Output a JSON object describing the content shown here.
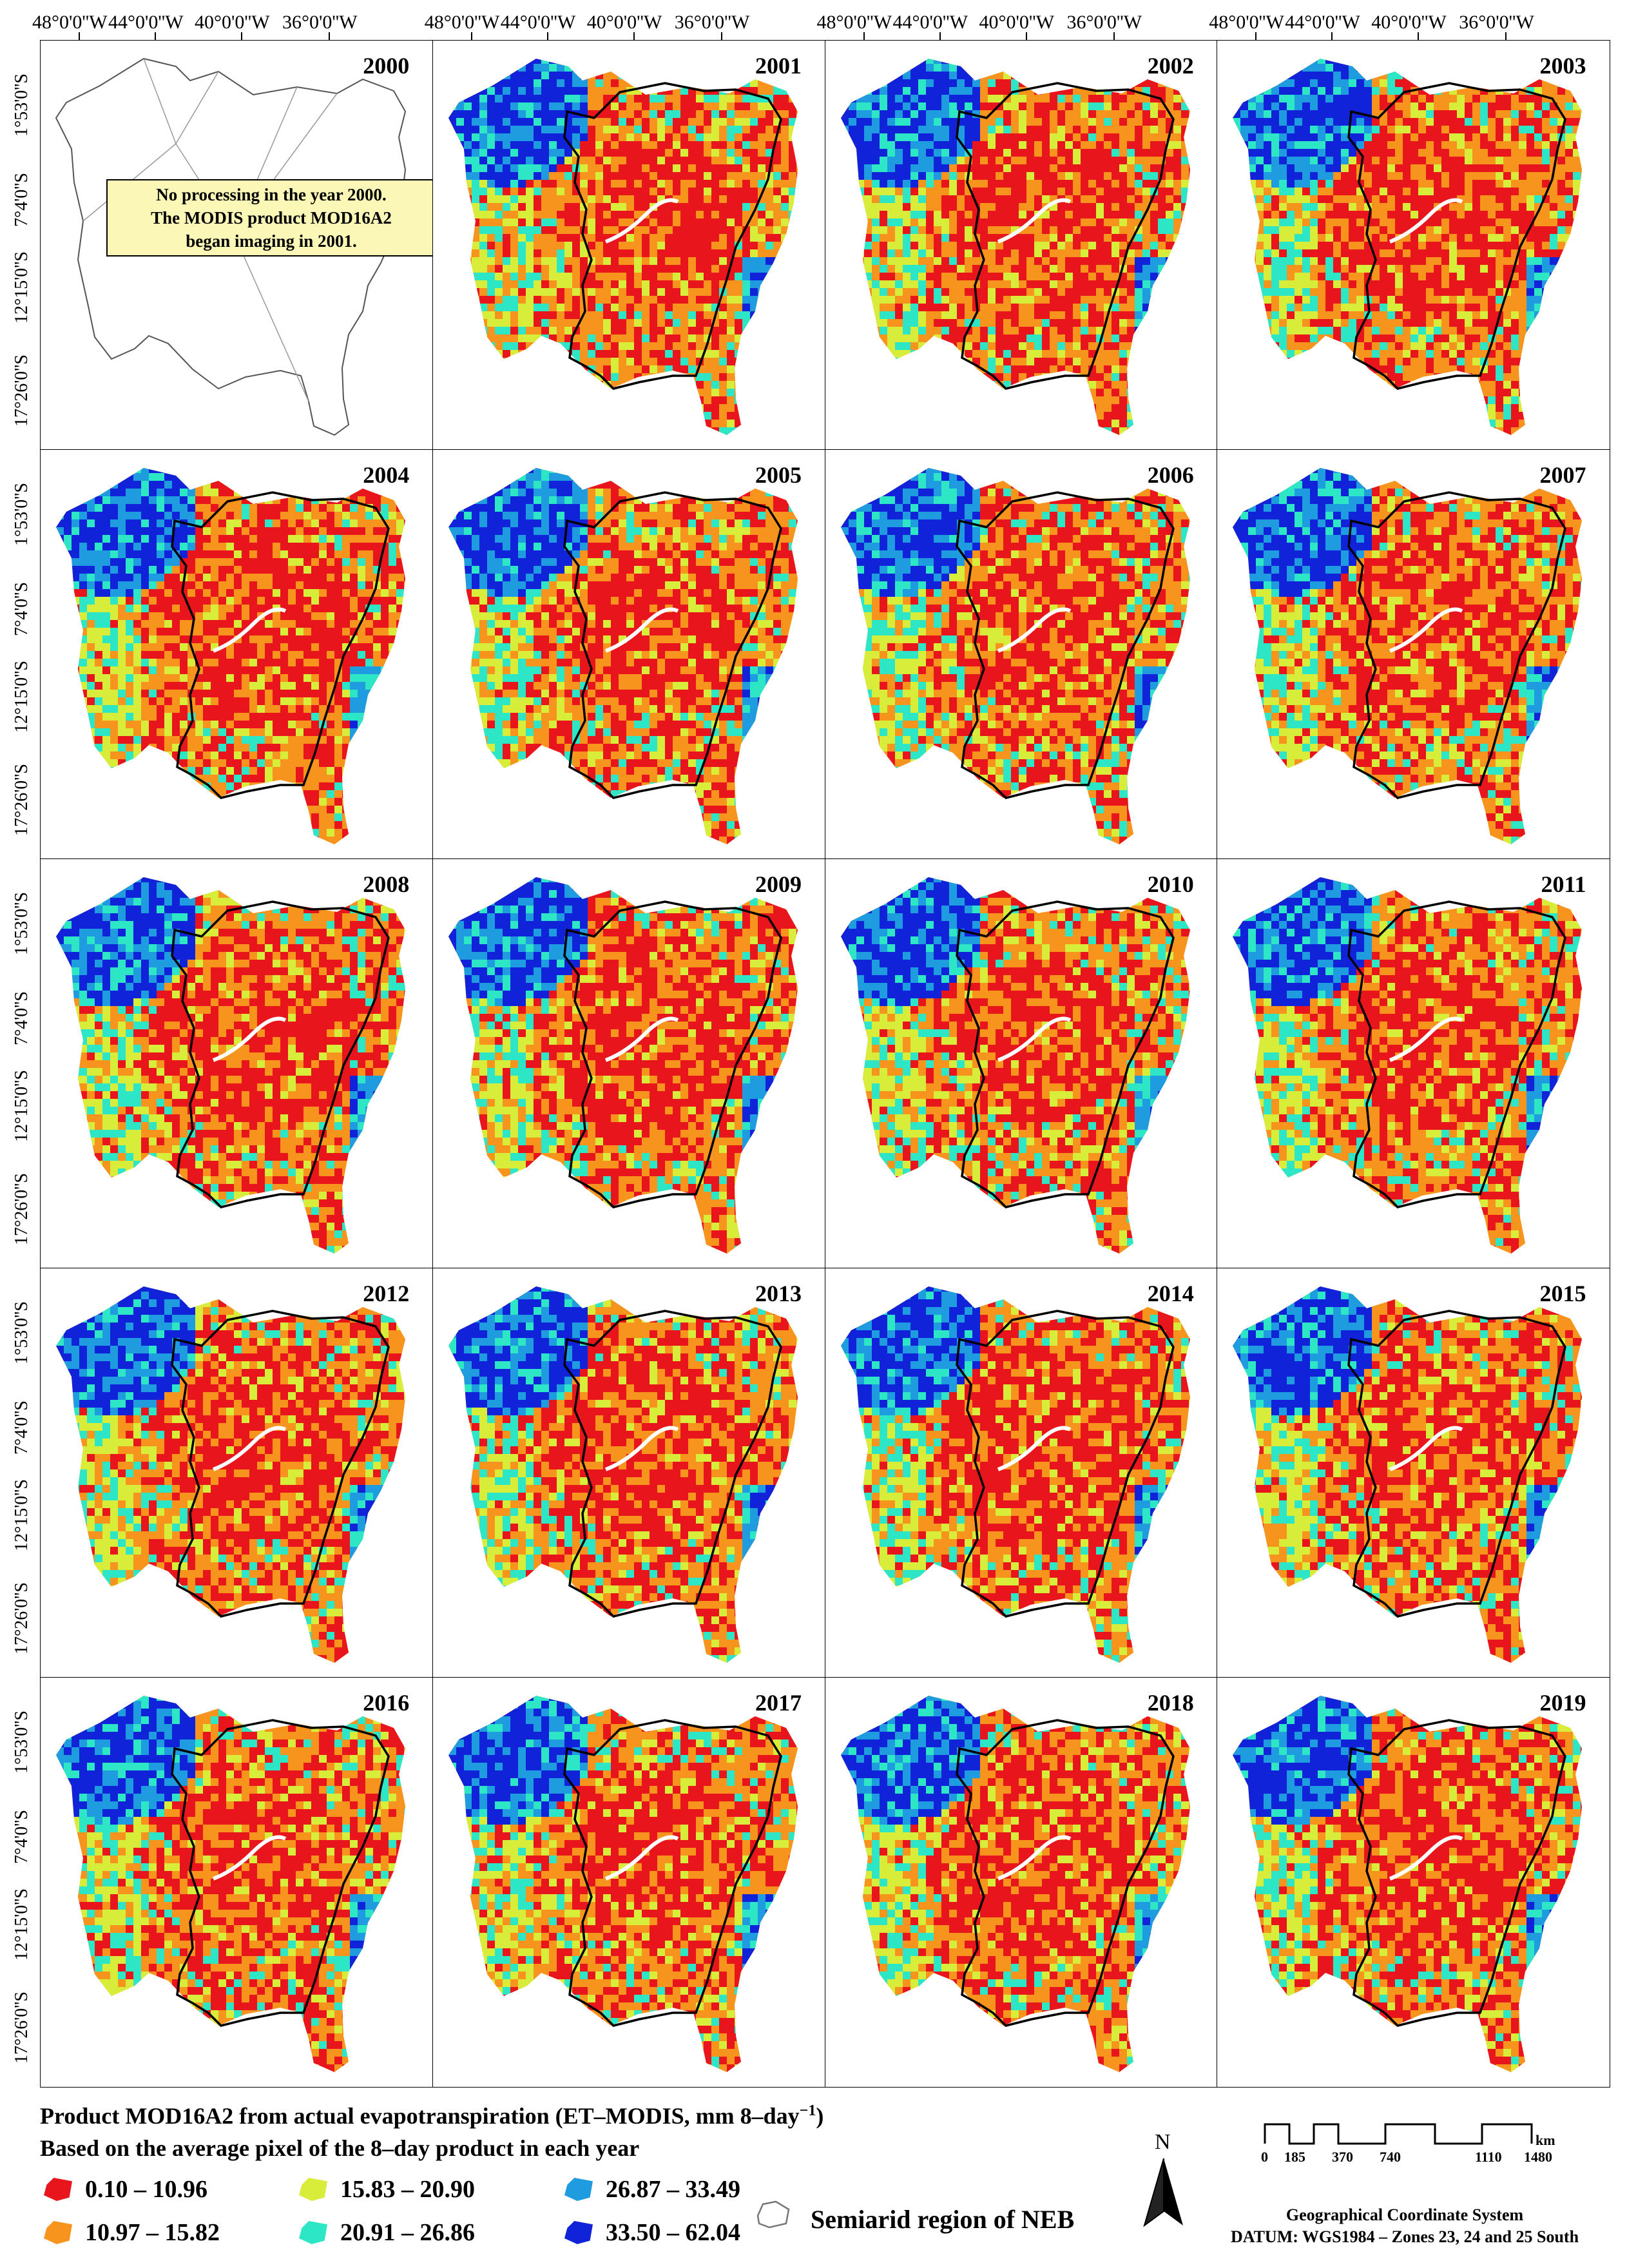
{
  "figure": {
    "years": [
      "2000",
      "2001",
      "2002",
      "2003",
      "2004",
      "2005",
      "2006",
      "2007",
      "2008",
      "2009",
      "2010",
      "2011",
      "2012",
      "2013",
      "2014",
      "2015",
      "2016",
      "2017",
      "2018",
      "2019"
    ],
    "longitude_labels": [
      "48°0'0''W",
      "44°0'0''W",
      "40°0'0''W",
      "36°0'0''W"
    ],
    "latitude_labels": [
      "1°53'0''S",
      "7°4'0''S",
      "12°15'0''S",
      "17°26'0''S"
    ],
    "note_2000": [
      "No processing in the year 2000.",
      "The MODIS product MOD16A2",
      "began imaging in 2001."
    ]
  },
  "legend": {
    "title_line1": "Product MOD16A2 from actual evapotranspiration (ET–MODIS, mm 8–day",
    "title_sup": "−1",
    "title_close": ")",
    "title_line2": "Based on the average pixel of the 8–day product in each year",
    "classes": [
      {
        "label": "0.10 – 10.96",
        "color": "#e8151c"
      },
      {
        "label": "10.97 – 15.82",
        "color": "#f7941d"
      },
      {
        "label": "15.83 – 20.90",
        "color": "#d8ec3a"
      },
      {
        "label": "20.91 – 26.86",
        "color": "#2ce6c6"
      },
      {
        "label": "26.87 – 33.49",
        "color": "#1f9be0"
      },
      {
        "label": "33.50 – 62.04",
        "color": "#1123d8"
      }
    ],
    "semiarid_label": "Semiarid region of NEB"
  },
  "north_arrow": {
    "label": "N"
  },
  "scale_bar": {
    "ticks": [
      "0",
      "185",
      "370",
      "740",
      "1110",
      "1480"
    ],
    "unit": "km"
  },
  "crs": {
    "line1": "Geographical Coordinate System",
    "line2": "DATUM: WGS1984 – Zones 23, 24 and 25 South"
  }
}
